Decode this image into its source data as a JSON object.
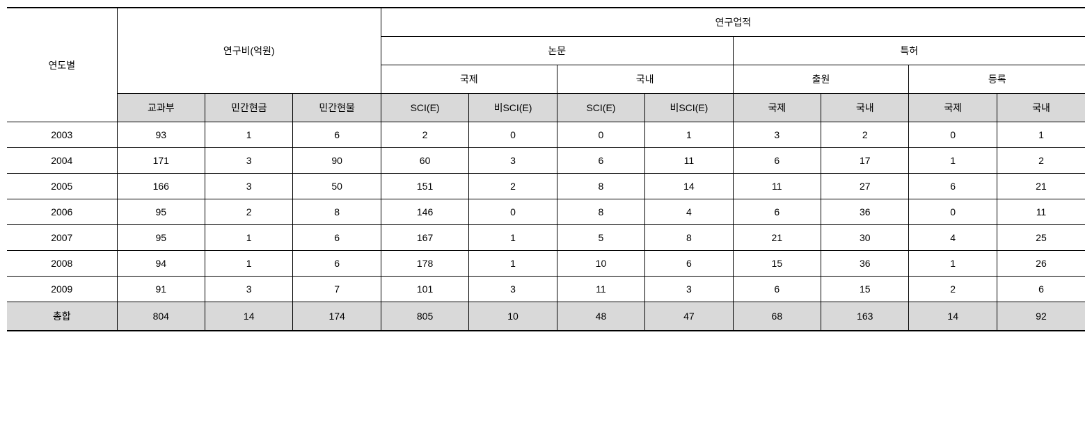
{
  "table": {
    "type": "table",
    "background_color": "#ffffff",
    "border_color": "#000000",
    "total_row_bg": "#d9d9d9",
    "header_sub_bg": "#d9d9d9",
    "headers": {
      "year": "연도별",
      "funding": "연구비(억원)",
      "achievements": "연구업적",
      "papers": "논문",
      "patents": "특허",
      "international": "국제",
      "domestic": "국내",
      "application": "출원",
      "registration": "등록",
      "ministry": "교과부",
      "private_cash": "민간현금",
      "private_inkind": "민간현물",
      "sci": "SCI(E)",
      "non_sci": "비SCI(E)"
    },
    "rows": [
      {
        "year": "2003",
        "ministry": "93",
        "private_cash": "1",
        "private_inkind": "6",
        "intl_sci": "2",
        "intl_nonsci": "0",
        "dom_sci": "0",
        "dom_nonsci": "1",
        "app_intl": "3",
        "app_dom": "2",
        "reg_intl": "0",
        "reg_dom": "1"
      },
      {
        "year": "2004",
        "ministry": "171",
        "private_cash": "3",
        "private_inkind": "90",
        "intl_sci": "60",
        "intl_nonsci": "3",
        "dom_sci": "6",
        "dom_nonsci": "11",
        "app_intl": "6",
        "app_dom": "17",
        "reg_intl": "1",
        "reg_dom": "2"
      },
      {
        "year": "2005",
        "ministry": "166",
        "private_cash": "3",
        "private_inkind": "50",
        "intl_sci": "151",
        "intl_nonsci": "2",
        "dom_sci": "8",
        "dom_nonsci": "14",
        "app_intl": "11",
        "app_dom": "27",
        "reg_intl": "6",
        "reg_dom": "21"
      },
      {
        "year": "2006",
        "ministry": "95",
        "private_cash": "2",
        "private_inkind": "8",
        "intl_sci": "146",
        "intl_nonsci": "0",
        "dom_sci": "8",
        "dom_nonsci": "4",
        "app_intl": "6",
        "app_dom": "36",
        "reg_intl": "0",
        "reg_dom": "11"
      },
      {
        "year": "2007",
        "ministry": "95",
        "private_cash": "1",
        "private_inkind": "6",
        "intl_sci": "167",
        "intl_nonsci": "1",
        "dom_sci": "5",
        "dom_nonsci": "8",
        "app_intl": "21",
        "app_dom": "30",
        "reg_intl": "4",
        "reg_dom": "25"
      },
      {
        "year": "2008",
        "ministry": "94",
        "private_cash": "1",
        "private_inkind": "6",
        "intl_sci": "178",
        "intl_nonsci": "1",
        "dom_sci": "10",
        "dom_nonsci": "6",
        "app_intl": "15",
        "app_dom": "36",
        "reg_intl": "1",
        "reg_dom": "26"
      },
      {
        "year": "2009",
        "ministry": "91",
        "private_cash": "3",
        "private_inkind": "7",
        "intl_sci": "101",
        "intl_nonsci": "3",
        "dom_sci": "11",
        "dom_nonsci": "3",
        "app_intl": "6",
        "app_dom": "15",
        "reg_intl": "2",
        "reg_dom": "6"
      }
    ],
    "total": {
      "label": "총합",
      "ministry": "804",
      "private_cash": "14",
      "private_inkind": "174",
      "intl_sci": "805",
      "intl_nonsci": "10",
      "dom_sci": "48",
      "dom_nonsci": "47",
      "app_intl": "68",
      "app_dom": "163",
      "reg_intl": "14",
      "reg_dom": "92"
    }
  }
}
